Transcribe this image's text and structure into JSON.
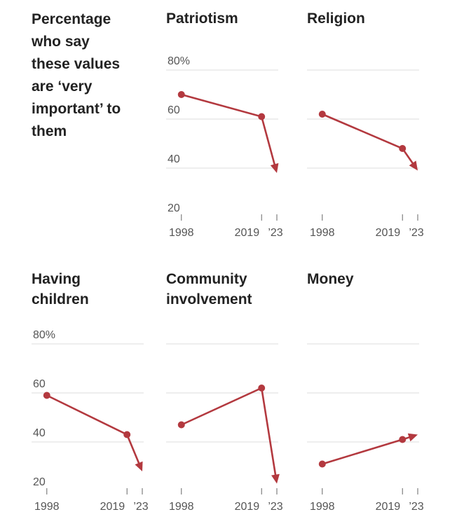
{
  "title": "Percentage who say these values are ‘very important’ to them",
  "chart_data": [
    {
      "type": "line",
      "title": "Patriotism",
      "x": [
        1998,
        2019,
        2023
      ],
      "series": [
        {
          "color": "#b3393f",
          "values": [
            70,
            61,
            38
          ]
        }
      ],
      "xlim": [
        1994,
        2023
      ],
      "xticks": [
        1998,
        2019,
        {
          "value": 2023,
          "label": "’23"
        }
      ],
      "ylim": [
        20,
        80
      ],
      "yticks": [
        20,
        40,
        60,
        {
          "value": 80,
          "label": "80%"
        }
      ],
      "grid": true
    },
    {
      "type": "line",
      "title": "Religion",
      "x": [
        1998,
        2019,
        2023
      ],
      "series": [
        {
          "color": "#b3393f",
          "values": [
            62,
            48,
            39
          ]
        }
      ],
      "xlim": [
        1994,
        2023
      ],
      "xticks": [
        1998,
        2019,
        {
          "value": 2023,
          "label": "’23"
        }
      ],
      "ylim": [
        20,
        80
      ],
      "yticks": [
        20,
        40,
        60,
        {
          "value": 80,
          "label": "80%"
        }
      ],
      "grid": true
    },
    {
      "type": "line",
      "title": "Having children",
      "x": [
        1998,
        2019,
        2023
      ],
      "series": [
        {
          "color": "#b3393f",
          "values": [
            59,
            43,
            28
          ]
        }
      ],
      "xlim": [
        1994,
        2023
      ],
      "xticks": [
        1998,
        2019,
        {
          "value": 2023,
          "label": "’23"
        }
      ],
      "ylim": [
        20,
        80
      ],
      "yticks": [
        20,
        40,
        60,
        {
          "value": 80,
          "label": "80%"
        }
      ],
      "grid": true
    },
    {
      "type": "line",
      "title": "Community involvement",
      "x": [
        1998,
        2019,
        2023
      ],
      "series": [
        {
          "color": "#b3393f",
          "values": [
            47,
            62,
            23
          ]
        }
      ],
      "xlim": [
        1994,
        2023
      ],
      "xticks": [
        1998,
        2019,
        {
          "value": 2023,
          "label": "’23"
        }
      ],
      "ylim": [
        20,
        80
      ],
      "yticks": [
        20,
        40,
        60,
        {
          "value": 80,
          "label": "80%"
        }
      ],
      "grid": true
    },
    {
      "type": "line",
      "title": "Money",
      "x": [
        1998,
        2019,
        2023
      ],
      "series": [
        {
          "color": "#b3393f",
          "values": [
            31,
            41,
            43
          ]
        }
      ],
      "xlim": [
        1994,
        2023
      ],
      "xticks": [
        1998,
        2019,
        {
          "value": 2023,
          "label": "’23"
        }
      ],
      "ylim": [
        20,
        80
      ],
      "yticks": [
        20,
        40,
        60,
        {
          "value": 80,
          "label": "80%"
        }
      ],
      "grid": true
    }
  ]
}
